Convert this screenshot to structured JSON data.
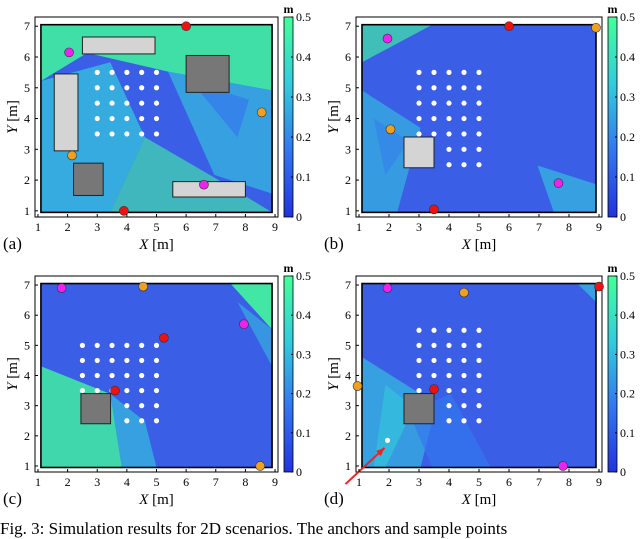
{
  "caption": "Fig. 3: Simulation results for 2D scenarios. The anchors and sample points",
  "chart_data": [
    {
      "type": "heatmap",
      "panel_label": "(a)",
      "xlabel_var": "X",
      "xlabel_unit": "[m]",
      "ylabel_var": "Y",
      "ylabel_unit": "[m]",
      "xlim": [
        0.9,
        9.1
      ],
      "ylim": [
        0.8,
        7.3
      ],
      "xticks": [
        1,
        2,
        3,
        4,
        5,
        6,
        7,
        8,
        9
      ],
      "yticks": [
        1,
        2,
        3,
        4,
        5,
        6,
        7
      ],
      "colorbar": {
        "label": "m",
        "range": [
          0,
          0.5
        ],
        "ticks": [
          "0",
          "0.1",
          "0.2",
          "0.3",
          "0.4",
          "0.5"
        ],
        "colors": [
          "#2233dd",
          "#3377ee",
          "#33ccdd",
          "#44ff99"
        ]
      },
      "room": {
        "x": [
          1.1,
          8.9
        ],
        "y": [
          0.95,
          7.05
        ]
      },
      "obstacles": [
        {
          "x0": 2.5,
          "x1": 4.95,
          "y0": 6.1,
          "y1": 6.65,
          "fill": "#d4d4d4"
        },
        {
          "x0": 6.0,
          "x1": 7.45,
          "y0": 4.85,
          "y1": 6.05,
          "fill": "#777777"
        },
        {
          "x0": 1.55,
          "x1": 2.35,
          "y0": 2.95,
          "y1": 5.45,
          "fill": "#d4d4d4"
        },
        {
          "x0": 2.2,
          "x1": 3.2,
          "y0": 1.5,
          "y1": 2.55,
          "fill": "#777777"
        },
        {
          "x0": 5.55,
          "x1": 8.0,
          "y0": 1.45,
          "y1": 1.95,
          "fill": "#d4d4d4"
        }
      ],
      "sample_grid": {
        "x": [
          3.0,
          3.5,
          4.0,
          4.5,
          5.0
        ],
        "y": [
          3.5,
          4.0,
          4.5,
          5.0,
          5.5
        ]
      },
      "extra_samples": [],
      "anchors": [
        {
          "x": 6.0,
          "y": 7.0,
          "color": "#ee1111"
        },
        {
          "x": 3.9,
          "y": 1.0,
          "color": "#ee1111"
        },
        {
          "x": 2.05,
          "y": 6.15,
          "color": "#ee22ee"
        },
        {
          "x": 6.6,
          "y": 1.85,
          "color": "#ee22ee"
        },
        {
          "x": 8.55,
          "y": 4.2,
          "color": "#f0a020"
        },
        {
          "x": 2.15,
          "y": 2.8,
          "color": "#f0a020"
        }
      ]
    },
    {
      "type": "heatmap",
      "panel_label": "(b)",
      "xlabel_var": "X",
      "xlabel_unit": "[m]",
      "ylabel_var": "Y",
      "ylabel_unit": "[m]",
      "xlim": [
        0.9,
        9.1
      ],
      "ylim": [
        0.8,
        7.3
      ],
      "xticks": [
        1,
        2,
        3,
        4,
        5,
        6,
        7,
        8,
        9
      ],
      "yticks": [
        1,
        2,
        3,
        4,
        5,
        6,
        7
      ],
      "colorbar": {
        "label": "m",
        "range": [
          0,
          0.5
        ],
        "ticks": [
          "0",
          "0.1",
          "0.2",
          "0.3",
          "0.4",
          "0.5"
        ],
        "colors": [
          "#2233dd",
          "#3377ee",
          "#33ccdd",
          "#44ff99"
        ]
      },
      "room": {
        "x": [
          1.1,
          8.9
        ],
        "y": [
          0.95,
          7.05
        ]
      },
      "obstacles": [
        {
          "x0": 2.5,
          "x1": 3.5,
          "y0": 2.4,
          "y1": 3.4,
          "fill": "#d4d4d4"
        }
      ],
      "sample_grid": {
        "x": [
          3.0,
          3.5,
          4.0,
          4.5,
          5.0
        ],
        "y": [
          3.5,
          4.0,
          4.5,
          5.0,
          5.5
        ]
      },
      "extra_samples": [
        {
          "x": 4.0,
          "y": 2.5
        },
        {
          "x": 4.5,
          "y": 2.5
        },
        {
          "x": 5.0,
          "y": 2.5
        },
        {
          "x": 4.0,
          "y": 3.0
        },
        {
          "x": 4.5,
          "y": 3.0
        },
        {
          "x": 5.0,
          "y": 3.0
        }
      ],
      "anchors": [
        {
          "x": 6.0,
          "y": 7.0,
          "color": "#ee1111"
        },
        {
          "x": 3.5,
          "y": 1.05,
          "color": "#ee1111"
        },
        {
          "x": 1.95,
          "y": 6.6,
          "color": "#ee22ee"
        },
        {
          "x": 7.65,
          "y": 1.9,
          "color": "#ee22ee"
        },
        {
          "x": 8.9,
          "y": 6.95,
          "color": "#f0a020"
        },
        {
          "x": 2.05,
          "y": 3.65,
          "color": "#f0a020"
        }
      ]
    },
    {
      "type": "heatmap",
      "panel_label": "(c)",
      "xlabel_var": "X",
      "xlabel_unit": "[m]",
      "ylabel_var": "Y",
      "ylabel_unit": "[m]",
      "xlim": [
        0.9,
        9.1
      ],
      "ylim": [
        0.8,
        7.3
      ],
      "xticks": [
        1,
        2,
        3,
        4,
        5,
        6,
        7,
        8,
        9
      ],
      "yticks": [
        1,
        2,
        3,
        4,
        5,
        6,
        7
      ],
      "colorbar": {
        "label": "m",
        "range": [
          0,
          0.5
        ],
        "ticks": [
          "0",
          "0.1",
          "0.2",
          "0.3",
          "0.4",
          "0.5"
        ],
        "colors": [
          "#2233dd",
          "#3377ee",
          "#33ccdd",
          "#44ff99"
        ]
      },
      "room": {
        "x": [
          1.1,
          8.9
        ],
        "y": [
          0.95,
          7.05
        ]
      },
      "obstacles": [
        {
          "x0": 2.45,
          "x1": 3.45,
          "y0": 2.4,
          "y1": 3.4,
          "fill": "#777777"
        }
      ],
      "sample_grid": {
        "x": [
          2.5,
          3.0,
          3.5,
          4.0,
          4.5,
          5.0
        ],
        "y": [
          3.5,
          4.0,
          4.5,
          5.0
        ]
      },
      "extra_samples": [
        {
          "x": 4.0,
          "y": 2.5
        },
        {
          "x": 4.5,
          "y": 2.5
        },
        {
          "x": 5.0,
          "y": 2.5
        },
        {
          "x": 4.0,
          "y": 3.0
        },
        {
          "x": 4.5,
          "y": 3.0
        },
        {
          "x": 5.0,
          "y": 3.0
        }
      ],
      "anchors": [
        {
          "x": 5.25,
          "y": 5.25,
          "color": "#ee1111"
        },
        {
          "x": 3.6,
          "y": 3.5,
          "color": "#ee1111"
        },
        {
          "x": 1.8,
          "y": 6.9,
          "color": "#ee22ee"
        },
        {
          "x": 7.95,
          "y": 5.7,
          "color": "#ee22ee"
        },
        {
          "x": 4.55,
          "y": 6.95,
          "color": "#f0a020"
        },
        {
          "x": 8.5,
          "y": 1.0,
          "color": "#f0a020"
        }
      ]
    },
    {
      "type": "heatmap",
      "panel_label": "(d)",
      "xlabel_var": "X",
      "xlabel_unit": "[m]",
      "ylabel_var": "Y",
      "ylabel_unit": "[m]",
      "xlim": [
        0.9,
        9.1
      ],
      "ylim": [
        0.8,
        7.3
      ],
      "xticks": [
        1,
        2,
        3,
        4,
        5,
        6,
        7,
        8,
        9
      ],
      "yticks": [
        1,
        2,
        3,
        4,
        5,
        6,
        7
      ],
      "colorbar": {
        "label": "m",
        "range": [
          0,
          0.5
        ],
        "ticks": [
          "0",
          "0.1",
          "0.2",
          "0.3",
          "0.4",
          "0.5"
        ],
        "colors": [
          "#2233dd",
          "#3377ee",
          "#33ccdd",
          "#44ff99"
        ]
      },
      "room": {
        "x": [
          1.1,
          8.9
        ],
        "y": [
          0.95,
          7.05
        ]
      },
      "obstacles": [
        {
          "x0": 2.5,
          "x1": 3.5,
          "y0": 2.4,
          "y1": 3.4,
          "fill": "#777777"
        }
      ],
      "sample_grid": {
        "x": [
          3.0,
          3.5,
          4.0,
          4.5,
          5.0
        ],
        "y": [
          3.5,
          4.0,
          4.5,
          5.0,
          5.5
        ]
      },
      "extra_samples": [
        {
          "x": 4.0,
          "y": 2.5
        },
        {
          "x": 4.5,
          "y": 2.5
        },
        {
          "x": 5.0,
          "y": 2.5
        },
        {
          "x": 4.0,
          "y": 3.0
        },
        {
          "x": 4.5,
          "y": 3.0
        },
        {
          "x": 5.0,
          "y": 3.0
        },
        {
          "x": 1.95,
          "y": 1.85
        }
      ],
      "anchors": [
        {
          "x": 3.5,
          "y": 3.55,
          "color": "#ee1111"
        },
        {
          "x": 9.0,
          "y": 6.95,
          "color": "#ee1111"
        },
        {
          "x": 1.95,
          "y": 6.9,
          "color": "#ee22ee"
        },
        {
          "x": 7.8,
          "y": 1.0,
          "color": "#ee22ee"
        },
        {
          "x": 4.5,
          "y": 6.75,
          "color": "#f0a020"
        },
        {
          "x": 0.95,
          "y": 3.65,
          "color": "#f0a020"
        }
      ],
      "arrow": {
        "from": [
          0.55,
          0.4
        ],
        "to": [
          1.85,
          1.6
        ],
        "color": "#ee2222"
      }
    }
  ]
}
